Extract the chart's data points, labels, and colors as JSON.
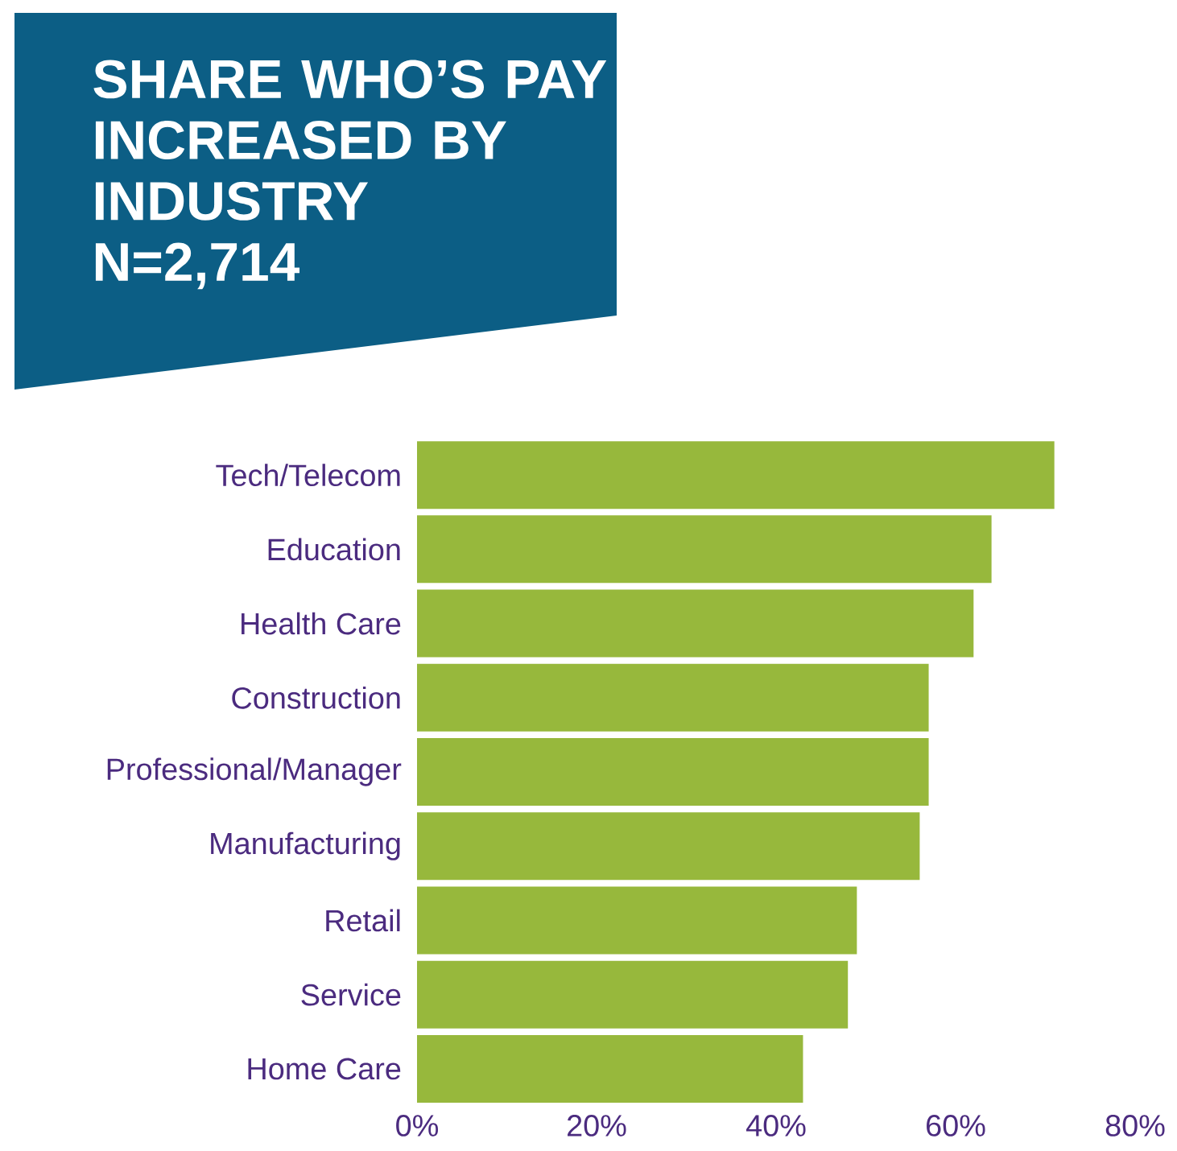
{
  "chart_data": {
    "type": "bar",
    "orientation": "horizontal",
    "title": "SHARE WHO’S PAY INCREASED BY INDUSTRY",
    "subtitle": "N=2,714",
    "categories": [
      "Tech/Telecom",
      "Education",
      "Health Care",
      "Construction",
      "Professional/Manager",
      "Manufacturing",
      "Retail",
      "Service",
      "Home Care"
    ],
    "values": [
      71,
      64,
      62,
      57,
      57,
      56,
      49,
      48,
      43
    ],
    "color": "#97b83c",
    "xlim": [
      0,
      80
    ],
    "xticks": [
      {
        "value": 0,
        "label": "0%"
      },
      {
        "value": 20,
        "label": "20%"
      },
      {
        "value": 40,
        "label": "40%"
      },
      {
        "value": 60,
        "label": "60%"
      },
      {
        "value": 80,
        "label": "80%"
      }
    ]
  }
}
